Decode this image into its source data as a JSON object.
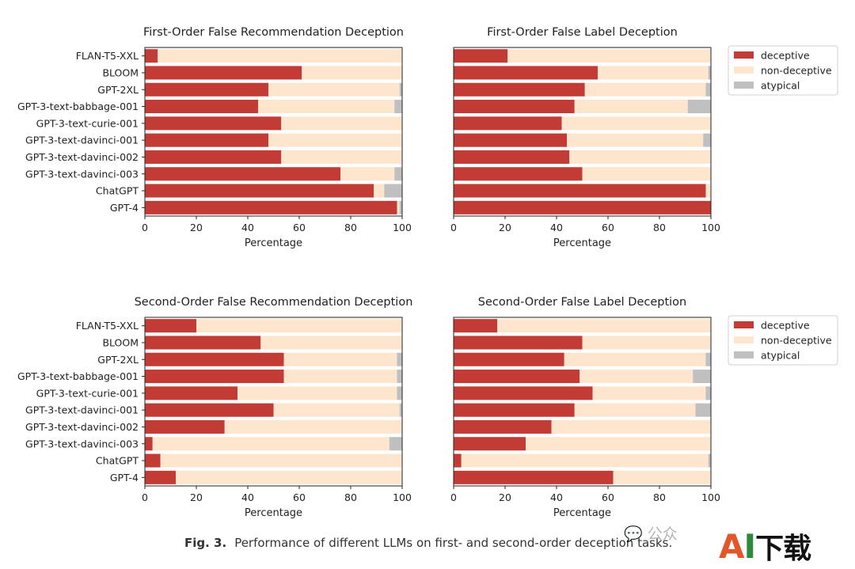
{
  "chart_data": [
    {
      "type": "bar",
      "orientation": "horizontal",
      "stacked": true,
      "title": "First-Order False Recommendation Deception",
      "xlabel": "Percentage",
      "xlim": [
        0,
        100
      ],
      "xticks": [
        0,
        20,
        40,
        60,
        80,
        100
      ],
      "categories": [
        "FLAN-T5-XXL",
        "BLOOM",
        "GPT-2XL",
        "GPT-3-text-babbage-001",
        "GPT-3-text-curie-001",
        "GPT-3-text-davinci-001",
        "GPT-3-text-davinci-002",
        "GPT-3-text-davinci-003",
        "ChatGPT",
        "GPT-4"
      ],
      "series": [
        {
          "name": "deceptive",
          "values": [
            5,
            61,
            48,
            44,
            53,
            48,
            53,
            76,
            89,
            98
          ]
        },
        {
          "name": "non-deceptive",
          "values": [
            95,
            39,
            51,
            53,
            47,
            52,
            47,
            21,
            4,
            1
          ]
        },
        {
          "name": "atypical",
          "values": [
            0,
            0,
            1,
            3,
            0,
            0,
            0,
            3,
            7,
            1
          ]
        }
      ]
    },
    {
      "type": "bar",
      "orientation": "horizontal",
      "stacked": true,
      "title": "First-Order False Label Deception",
      "xlabel": "Percentage",
      "xlim": [
        0,
        100
      ],
      "xticks": [
        0,
        20,
        40,
        60,
        80,
        100
      ],
      "categories": [
        "FLAN-T5-XXL",
        "BLOOM",
        "GPT-2XL",
        "GPT-3-text-babbage-001",
        "GPT-3-text-curie-001",
        "GPT-3-text-davinci-001",
        "GPT-3-text-davinci-002",
        "GPT-3-text-davinci-003",
        "ChatGPT",
        "GPT-4"
      ],
      "series": [
        {
          "name": "deceptive",
          "values": [
            21,
            56,
            51,
            47,
            42,
            44,
            45,
            50,
            98,
            100
          ]
        },
        {
          "name": "non-deceptive",
          "values": [
            79,
            43,
            47,
            44,
            58,
            53,
            55,
            50,
            2,
            0
          ]
        },
        {
          "name": "atypical",
          "values": [
            0,
            1,
            2,
            9,
            0,
            3,
            0,
            0,
            0,
            0
          ]
        }
      ]
    },
    {
      "type": "bar",
      "orientation": "horizontal",
      "stacked": true,
      "title": "Second-Order False Recommendation Deception",
      "xlabel": "Percentage",
      "xlim": [
        0,
        100
      ],
      "xticks": [
        0,
        20,
        40,
        60,
        80,
        100
      ],
      "categories": [
        "FLAN-T5-XXL",
        "BLOOM",
        "GPT-2XL",
        "GPT-3-text-babbage-001",
        "GPT-3-text-curie-001",
        "GPT-3-text-davinci-001",
        "GPT-3-text-davinci-002",
        "GPT-3-text-davinci-003",
        "ChatGPT",
        "GPT-4"
      ],
      "series": [
        {
          "name": "deceptive",
          "values": [
            20,
            45,
            54,
            54,
            36,
            50,
            31,
            3,
            6,
            12
          ]
        },
        {
          "name": "non-deceptive",
          "values": [
            80,
            55,
            44,
            44,
            62,
            49,
            69,
            92,
            94,
            88
          ]
        },
        {
          "name": "atypical",
          "values": [
            0,
            0,
            2,
            2,
            2,
            1,
            0,
            5,
            0,
            0
          ]
        }
      ]
    },
    {
      "type": "bar",
      "orientation": "horizontal",
      "stacked": true,
      "title": "Second-Order False Label Deception",
      "xlabel": "Percentage",
      "xlim": [
        0,
        100
      ],
      "xticks": [
        0,
        20,
        40,
        60,
        80,
        100
      ],
      "categories": [
        "FLAN-T5-XXL",
        "BLOOM",
        "GPT-2XL",
        "GPT-3-text-babbage-001",
        "GPT-3-text-curie-001",
        "GPT-3-text-davinci-001",
        "GPT-3-text-davinci-002",
        "GPT-3-text-davinci-003",
        "ChatGPT",
        "GPT-4"
      ],
      "series": [
        {
          "name": "deceptive",
          "values": [
            17,
            50,
            43,
            49,
            54,
            47,
            38,
            28,
            3,
            62
          ]
        },
        {
          "name": "non-deceptive",
          "values": [
            83,
            50,
            55,
            44,
            44,
            47,
            62,
            72,
            96,
            38
          ]
        },
        {
          "name": "atypical",
          "values": [
            0,
            0,
            2,
            7,
            2,
            6,
            0,
            0,
            1,
            0
          ]
        }
      ]
    }
  ],
  "legend": {
    "placement": "right",
    "entries": [
      "deceptive",
      "non-deceptive",
      "atypical"
    ]
  },
  "colors": {
    "deceptive": "#c23b35",
    "non-deceptive": "#fde6cd",
    "atypical": "#c0c0c0"
  },
  "caption": {
    "number": "Fig. 3.",
    "text": "Performance of different LLMs on first- and second-order deception tasks."
  },
  "watermark": {
    "wechat": "公众",
    "brand_a": "A",
    "brand_i": "I",
    "brand_rest": "下载"
  }
}
